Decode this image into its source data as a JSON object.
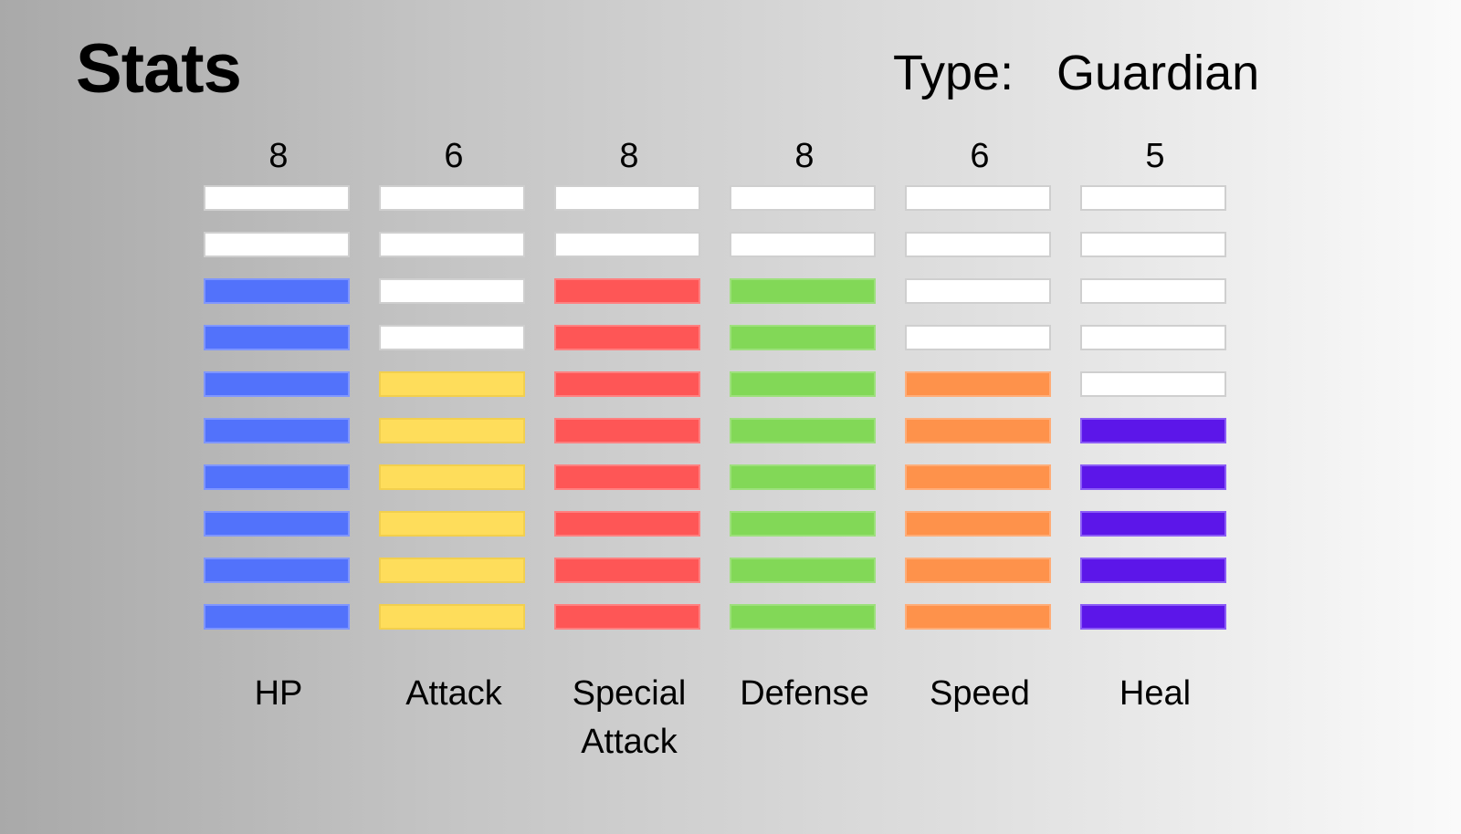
{
  "header": {
    "title": "Stats",
    "type_label": "Type:",
    "type_value": "Guardian"
  },
  "max_pips": 10,
  "empty_color": "#ffffff",
  "stats": [
    {
      "name": "HP",
      "value": 8,
      "display": "8",
      "color": "#5272fb",
      "border": "#7f96ff"
    },
    {
      "name": "Attack",
      "value": 6,
      "display": "6",
      "color": "#fedd5b",
      "border": "#f2cf4d"
    },
    {
      "name": "Special\nAttack",
      "value": 8,
      "display": "8",
      "color": "#fe5656",
      "border": "#ff8080"
    },
    {
      "name": "Defense",
      "value": 8,
      "display": "8",
      "color": "#82d857",
      "border": "#9de07c"
    },
    {
      "name": "Speed",
      "value": 6,
      "display": "6",
      "color": "#fe924b",
      "border": "#ffad78"
    },
    {
      "name": "Heal",
      "value": 5,
      "display": "5",
      "color": "#5c16e9",
      "border": "#8b5cf6"
    }
  ]
}
